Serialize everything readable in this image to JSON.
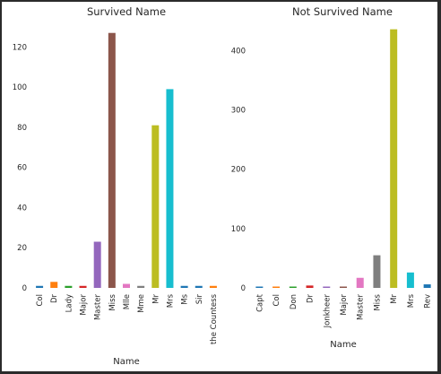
{
  "chart_data": [
    {
      "type": "bar",
      "title": "Survived Name",
      "xlabel": "Name",
      "ylabel": "",
      "ylim": [
        0,
        130
      ],
      "yticks": [
        0,
        20,
        40,
        60,
        80,
        100,
        120
      ],
      "categories": [
        "Col",
        "Dr",
        "Lady",
        "Major",
        "Master",
        "Miss",
        "Mlle",
        "Mme",
        "Mr",
        "Mrs",
        "Ms",
        "Sir",
        "the Countess"
      ],
      "values": [
        1,
        3,
        1,
        1,
        23,
        127,
        2,
        1,
        81,
        99,
        1,
        1,
        1
      ],
      "colors": [
        "#1f77b4",
        "#ff7f0e",
        "#2ca02c",
        "#d62728",
        "#9467bd",
        "#8c564b",
        "#e377c2",
        "#7f7f7f",
        "#bcbd22",
        "#17becf",
        "#1f77b4",
        "#1f77b4",
        "#ff7f0e"
      ],
      "grid": false
    },
    {
      "type": "bar",
      "title": "Not Survived Name",
      "xlabel": "Name",
      "ylabel": "",
      "ylim": [
        0,
        440
      ],
      "yticks": [
        0,
        100,
        200,
        300,
        400
      ],
      "categories": [
        "Capt",
        "Col",
        "Don",
        "Dr",
        "Jonkheer",
        "Major",
        "Master",
        "Miss",
        "Mr",
        "Mrs",
        "Rev"
      ],
      "values": [
        1,
        1,
        1,
        4,
        1,
        1,
        17,
        55,
        436,
        26,
        6
      ],
      "colors": [
        "#1f77b4",
        "#ff7f0e",
        "#2ca02c",
        "#d62728",
        "#9467bd",
        "#8c564b",
        "#e377c2",
        "#7f7f7f",
        "#bcbd22",
        "#17becf",
        "#1f77b4"
      ],
      "grid": false
    }
  ]
}
